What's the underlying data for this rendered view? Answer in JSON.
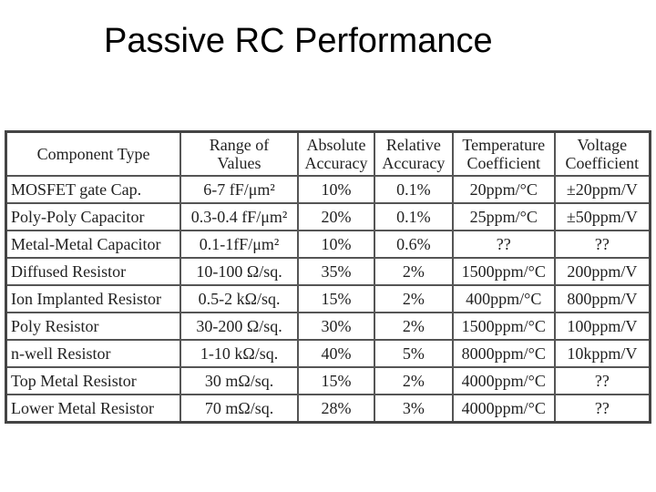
{
  "title": "Passive RC Performance",
  "table": {
    "header": [
      "Component Type",
      "Range of\nValues",
      "Absolute\nAccuracy",
      "Relative\nAccuracy",
      "Temperature\nCoefficient",
      "Voltage\nCoefficient"
    ],
    "rows": [
      [
        "MOSFET gate Cap.",
        "6-7 fF/μm²",
        "10%",
        "0.1%",
        "20ppm/°C",
        "±20ppm/V"
      ],
      [
        "Poly-Poly Capacitor",
        "0.3-0.4 fF/μm²",
        "20%",
        "0.1%",
        "25ppm/°C",
        "±50ppm/V"
      ],
      [
        "Metal-Metal Capacitor",
        "0.1-1fF/μm²",
        "10%",
        "0.6%",
        "??",
        "??"
      ],
      [
        "Diffused Resistor",
        "10-100 Ω/sq.",
        "35%",
        "2%",
        "1500ppm/°C",
        "200ppm/V"
      ],
      [
        "Ion Implanted Resistor",
        "0.5-2 kΩ/sq.",
        "15%",
        "2%",
        "400ppm/°C",
        "800ppm/V"
      ],
      [
        "Poly Resistor",
        "30-200 Ω/sq.",
        "30%",
        "2%",
        "1500ppm/°C",
        "100ppm/V"
      ],
      [
        "n-well Resistor",
        "1-10 kΩ/sq.",
        "40%",
        "5%",
        "8000ppm/°C",
        "10kppm/V"
      ],
      [
        "Top Metal Resistor",
        "30 mΩ/sq.",
        "15%",
        "2%",
        "4000ppm/°C",
        "??"
      ],
      [
        "Lower Metal Resistor",
        "70 mΩ/sq.",
        "28%",
        "3%",
        "4000ppm/°C",
        "??"
      ]
    ]
  }
}
